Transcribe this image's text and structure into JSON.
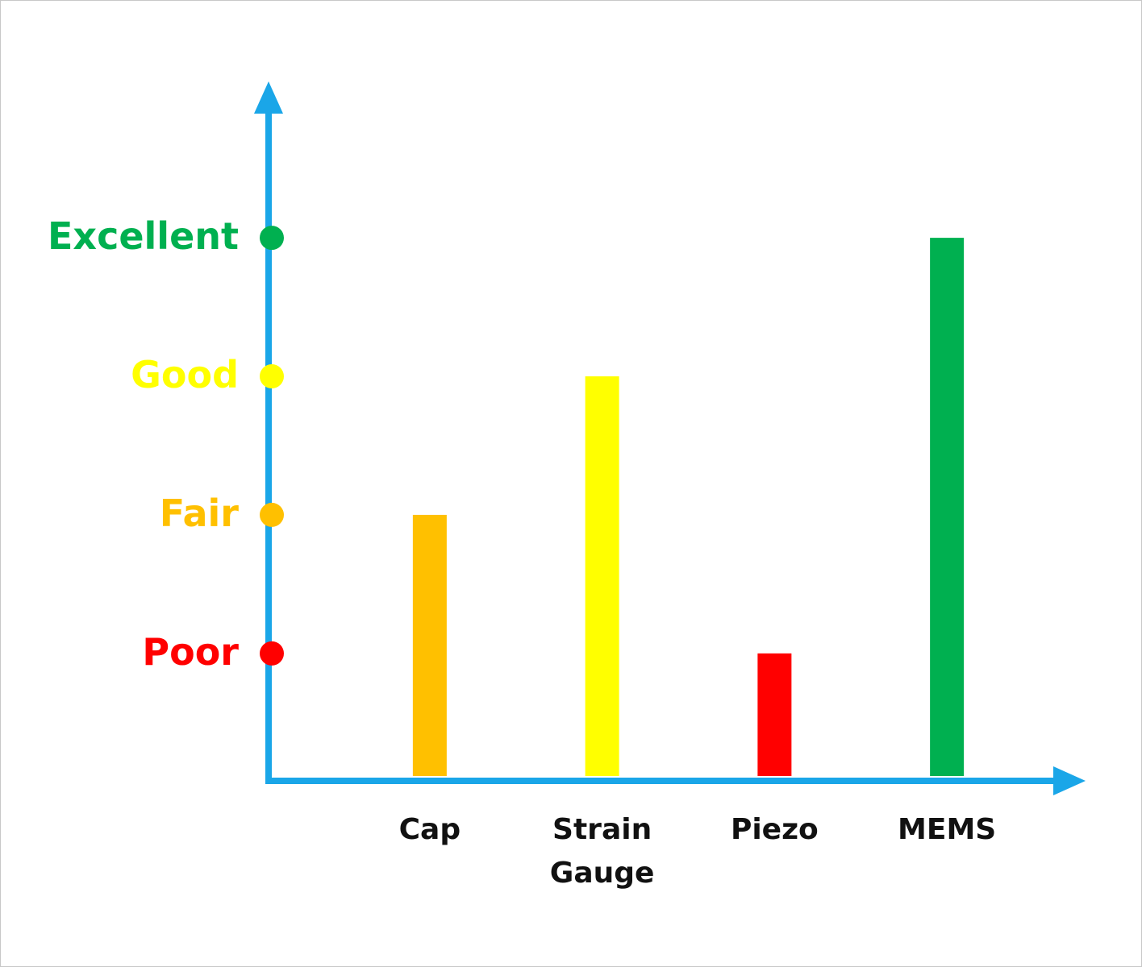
{
  "chart_data": {
    "type": "bar",
    "categories": [
      "Cap",
      "Strain Gauge",
      "Piezo",
      "MEMS"
    ],
    "values": [
      2,
      3,
      1,
      4
    ],
    "colors": [
      "#ffc000",
      "#ffff00",
      "#ff0000",
      "#00b050"
    ],
    "ylim": [
      0.08,
      5.1
    ],
    "yticks": [
      {
        "value": 1,
        "label": "Poor"
      },
      {
        "value": 2,
        "label": "Fair"
      },
      {
        "value": 3,
        "label": "Good"
      },
      {
        "value": 4,
        "label": "Excellent"
      }
    ],
    "ytick_colors": [
      "#ff0000",
      "#ffc000",
      "#ffff00",
      "#00b050"
    ],
    "axis_color": "#1aa6e8"
  }
}
